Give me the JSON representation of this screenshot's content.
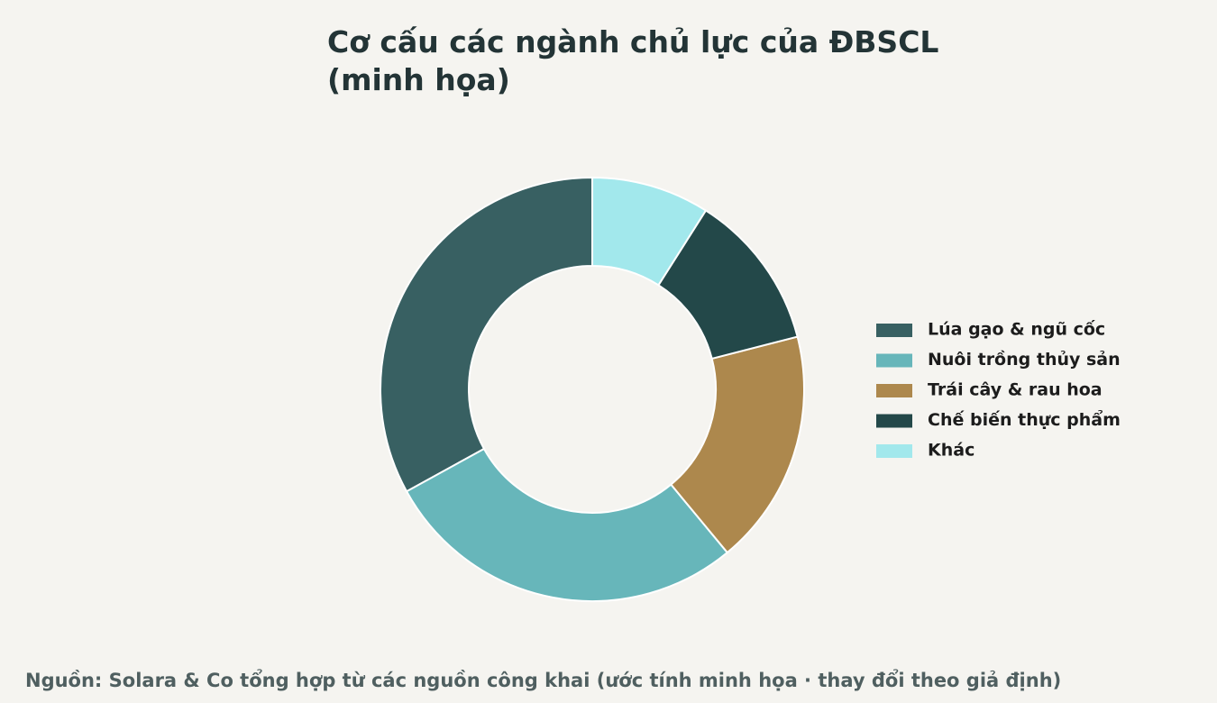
{
  "chart_data": {
    "type": "donut",
    "title": "Cơ cấu các ngành chủ lực của ĐBSCL",
    "subtitle": "(minh họa)",
    "categories": [
      "Lúa gạo & ngũ cốc",
      "Nuôi trồng thủy sản",
      "Trái cây & rau hoa",
      "Chế biến thực phẩm",
      "Khác"
    ],
    "values": [
      33,
      28,
      18,
      12,
      9
    ],
    "colors": [
      "#386062",
      "#67b6ba",
      "#ad884d",
      "#234849",
      "#a2e8ec"
    ],
    "direction": "counterclockwise",
    "legend": "right",
    "source": "Nguồn: Solara & Co tổng hợp từ các nguồn công khai (ước tính minh họa · thay đổi theo giả định)"
  }
}
